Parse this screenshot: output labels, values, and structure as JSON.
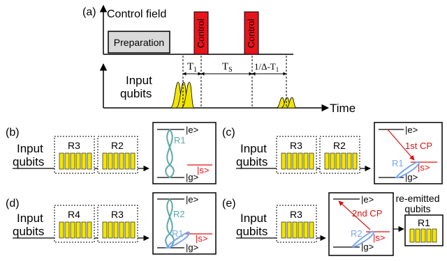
{
  "panel_a": {
    "label": "(a)",
    "y_axis_title": "Control field",
    "preparation_label": "Preparation",
    "control_label_1": "Control",
    "control_label_2": "Control",
    "input_label_line1": "Input",
    "input_label_line2": "qubits",
    "time_label": "Time",
    "interval_t1_main": "T",
    "interval_t1_sub": "1",
    "interval_ts_main": "T",
    "interval_ts_sub": "S",
    "interval_delta": "1/Δ-T",
    "interval_delta_sub": "1"
  },
  "panel_b": {
    "label": "(b)",
    "input_line1": "Input",
    "input_line2": "qubits",
    "box1": "R3",
    "box2": "R2",
    "ket_e": "|e>",
    "ket_s": "|s>",
    "ket_g": "|g>",
    "ring": "R1"
  },
  "panel_c": {
    "label": "(c)",
    "input_line1": "Input",
    "input_line2": "qubits",
    "box1": "R3",
    "box2": "R2",
    "ket_e": "|e>",
    "ket_s": "|s>",
    "ket_g": "|g>",
    "ring": "R1",
    "cp": "1st CP"
  },
  "panel_d": {
    "label": "(d)",
    "input_line1": "Input",
    "input_line2": "qubits",
    "box1": "R4",
    "box2": "R3",
    "ket_e": "|e>",
    "ket_s": "|s>",
    "ket_g": "|g>",
    "ring_top": "R2",
    "ring_bottom": "R1"
  },
  "panel_e": {
    "label": "(e)",
    "input_line1": "Input",
    "input_line2": "qubits",
    "box1": "R3",
    "ket_e": "|e>",
    "ket_s": "|s>",
    "ket_g": "|g>",
    "ring": "R2",
    "cp": "2nd CP",
    "reemitted_line1": "re-emitted",
    "reemitted_line2": "qubits",
    "output_box": "R1"
  },
  "colors": {
    "control_red": "#e8141c",
    "pulse_yellow": "#f2e600",
    "preparation_gray": "#d9d9d9",
    "red_arrow": "#e01010",
    "blue_wave": "#7aa7e8",
    "teal_wave": "#5fa8a8"
  }
}
